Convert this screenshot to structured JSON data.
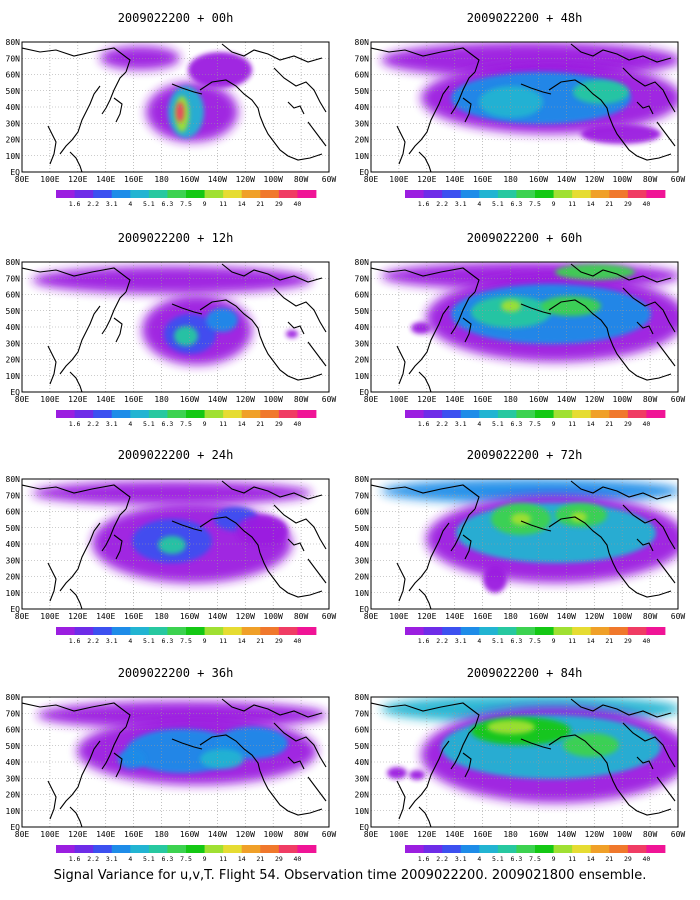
{
  "figure": {
    "caption": "Signal Variance for u,v,T. Flight 54. Observation time 2009022200. 2009021800 ensemble."
  },
  "map_axes": {
    "lat_labels": [
      "80N",
      "70N",
      "60N",
      "50N",
      "40N",
      "30N",
      "20N",
      "10N",
      "EQ"
    ],
    "lon_labels": [
      "80E",
      "100E",
      "120E",
      "140E",
      "160E",
      "180",
      "160W",
      "140W",
      "120W",
      "100W",
      "80W",
      "60W"
    ]
  },
  "colorbar": {
    "labels": [
      "1.6",
      "2.2",
      "3.1",
      "4",
      "5.1",
      "6.3",
      "7.5",
      "9",
      "11",
      "14",
      "21",
      "29",
      "40"
    ],
    "colors": [
      "#9b1ee0",
      "#6e2ce8",
      "#3c50f0",
      "#1e8ce8",
      "#22b4d2",
      "#27c8a0",
      "#3cd250",
      "#14c814",
      "#a0e032",
      "#e6dc32",
      "#f0a028",
      "#f0782c",
      "#f03c64",
      "#f01496"
    ]
  },
  "panels": [
    {
      "id": "p00",
      "title": "2009022200 + 00h",
      "level": 1
    },
    {
      "id": "p48",
      "title": "2009022200 + 48h",
      "level": 5
    },
    {
      "id": "p12",
      "title": "2009022200 + 12h",
      "level": 2
    },
    {
      "id": "p60",
      "title": "2009022200 + 60h",
      "level": 6
    },
    {
      "id": "p24",
      "title": "2009022200 + 24h",
      "level": 3
    },
    {
      "id": "p72",
      "title": "2009022200 + 72h",
      "level": 7
    },
    {
      "id": "p36",
      "title": "2009022200 + 36h",
      "level": 4
    },
    {
      "id": "p84",
      "title": "2009022200 + 84h",
      "level": 8
    }
  ]
}
